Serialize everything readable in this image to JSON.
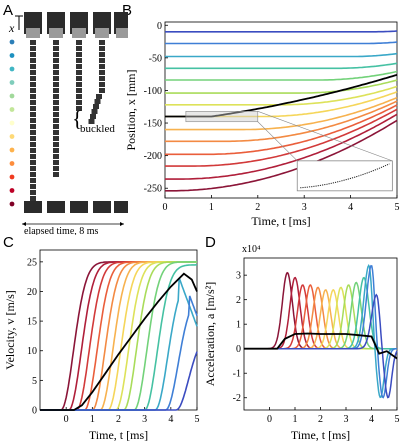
{
  "panels": {
    "A": {
      "letter": "A",
      "x_label": "x",
      "buckled_label": "buckled",
      "elapsed_label": "elapsed time, 8 ms",
      "dot_colors": [
        "#2c7fb8",
        "#1d91c0",
        "#41b6c4",
        "#7fcdbb",
        "#a1d99b",
        "#c2e699",
        "#ffffcc",
        "#fed976",
        "#feb24c",
        "#fd8d3c",
        "#f03b20",
        "#bd0026",
        "#800026"
      ]
    },
    "B": {
      "letter": "B"
    },
    "C": {
      "letter": "C"
    },
    "D": {
      "letter": "D"
    }
  },
  "chart_data": [
    {
      "id": "B",
      "type": "line",
      "xlabel": "Time, t [ms]",
      "ylabel": "Position, x [mm]",
      "xlim": [
        0,
        5
      ],
      "ylim": [
        -265,
        5
      ],
      "xticks": [
        0,
        1,
        2,
        3,
        4,
        5
      ],
      "yticks": [
        0,
        -50,
        -100,
        -150,
        -200,
        -250
      ],
      "series_offsets": [
        -10,
        -28,
        -48,
        -66,
        -84,
        -104,
        -122,
        -140,
        -160,
        -178,
        -198,
        -216,
        -236,
        -254
      ],
      "series_onsets": [
        4.5,
        4.3,
        4.0,
        3.7,
        3.3,
        2.9,
        2.5,
        2.1,
        1.7,
        1.3,
        0.9,
        0.6,
        0.3,
        0.1
      ],
      "series_colors": [
        "#3b4cc0",
        "#3f7fd6",
        "#3aa8c8",
        "#45c1a3",
        "#73d27a",
        "#a9dc5a",
        "#dde25a",
        "#f5d65a",
        "#f7b24f",
        "#f38a43",
        "#ea5e3b",
        "#d23a3a",
        "#b01f3a",
        "#8b1538"
      ],
      "highlight": {
        "offset": -140,
        "onset": 1.0,
        "end_value": -76,
        "color": "#000000"
      }
    },
    {
      "id": "C",
      "type": "line",
      "xlabel": "Time, t [ms]",
      "ylabel": "Velocity, v [m/s]",
      "xlim": [
        -1,
        5
      ],
      "ylim": [
        0,
        27
      ],
      "xticks": [
        0,
        1,
        2,
        3,
        4,
        5
      ],
      "yticks": [
        0,
        5,
        10,
        15,
        20,
        25
      ],
      "plateau": 25,
      "series_onsets": [
        -0.2,
        0.1,
        0.4,
        0.7,
        1.0,
        1.3,
        1.6,
        1.9,
        2.2,
        2.6,
        3.0,
        3.4,
        3.8,
        4.2
      ],
      "series_peaks": [
        25,
        25,
        25,
        25,
        25,
        25,
        25,
        25,
        25,
        25,
        24.5,
        22.5,
        19.5,
        13
      ],
      "series_colors": [
        "#8b1538",
        "#b01f3a",
        "#d23a3a",
        "#ea5e3b",
        "#f38a43",
        "#f7b24f",
        "#f5d65a",
        "#dde25a",
        "#a9dc5a",
        "#73d27a",
        "#45c1a3",
        "#3aa8c8",
        "#3f7fd6",
        "#3b4cc0"
      ],
      "highlight": {
        "x": [
          -1,
          0.3,
          0.6,
          1,
          1.5,
          2,
          2.5,
          3,
          3.5,
          4,
          4.5,
          4.8,
          5
        ],
        "y": [
          0,
          0,
          0.8,
          3,
          6.2,
          9.4,
          12.4,
          15.4,
          18.2,
          20.8,
          23,
          22,
          20
        ]
      }
    },
    {
      "id": "D",
      "type": "line",
      "xlabel": "Time, t [ms]",
      "ylabel": "Acceleration, a [m/s²]",
      "y_multiplier": "x10⁴",
      "xlim": [
        -1,
        5
      ],
      "ylim": [
        -2.5,
        3.7
      ],
      "xticks": [
        0,
        1,
        2,
        3,
        4,
        5
      ],
      "yticks": [
        3,
        2,
        1,
        0,
        -1,
        -2
      ],
      "series_peak_t": [
        0.7,
        1.0,
        1.3,
        1.6,
        1.9,
        2.2,
        2.5,
        2.8,
        3.1,
        3.4,
        3.7,
        3.9,
        4.0,
        4.2
      ],
      "series_peak_a": [
        3.1,
        2.9,
        2.6,
        2.6,
        2.5,
        2.4,
        2.4,
        2.5,
        2.6,
        2.7,
        2.9,
        3.4,
        3.4,
        2.2
      ],
      "series_colors": [
        "#8b1538",
        "#b01f3a",
        "#d23a3a",
        "#ea5e3b",
        "#f38a43",
        "#f7b24f",
        "#f5d65a",
        "#dde25a",
        "#a9dc5a",
        "#73d27a",
        "#45c1a3",
        "#3aa8c8",
        "#3f7fd6",
        "#3b4cc0"
      ],
      "highlight": {
        "x": [
          -1,
          0.3,
          0.6,
          1,
          1.5,
          2,
          2.5,
          3,
          3.5,
          4,
          4.3,
          4.6,
          5
        ],
        "y": [
          0,
          0,
          0.4,
          0.6,
          0.62,
          0.6,
          0.6,
          0.6,
          0.55,
          0.5,
          -0.2,
          -0.1,
          -0.4
        ]
      }
    }
  ]
}
